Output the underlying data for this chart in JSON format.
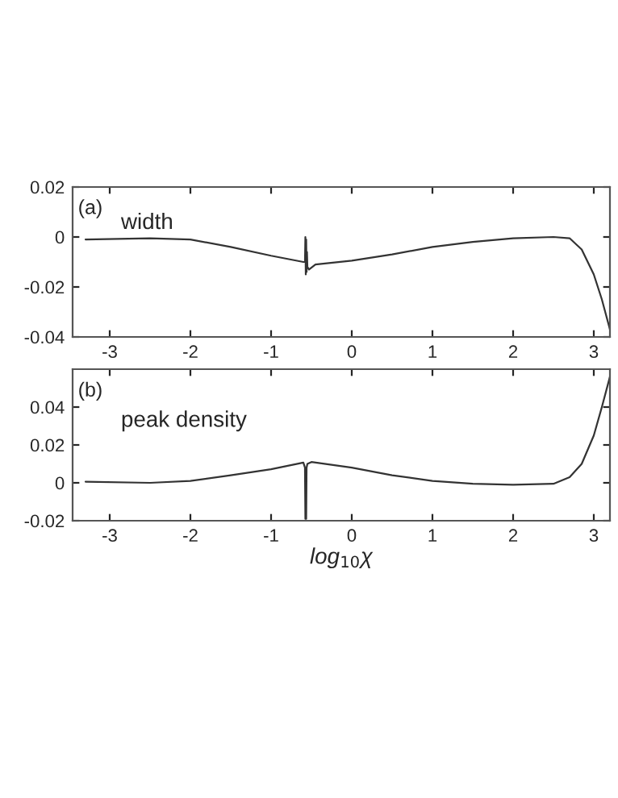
{
  "chart_data": [
    {
      "type": "line",
      "annotations": [
        "(a)",
        "width"
      ],
      "color": "#333333",
      "xlim": [
        -3.46,
        3.2
      ],
      "ylim": [
        -0.04,
        0.02
      ],
      "xticks": [
        -3,
        -2,
        -1,
        0,
        1,
        2,
        3
      ],
      "yticks": [
        {
          "value": -0.04,
          "label": "-0.04"
        },
        {
          "value": -0.02,
          "label": "-0.02"
        },
        0,
        {
          "value": 0.02,
          "label": "0.02"
        }
      ],
      "grid": false,
      "legend": false,
      "x": [
        -3.3,
        -2.5,
        -2,
        -1.5,
        -1,
        -0.6,
        -0.58,
        -0.575,
        -0.57,
        -0.565,
        -0.56,
        -0.555,
        -0.55,
        -0.53,
        -0.45,
        0,
        0.5,
        1,
        1.5,
        2,
        2.5,
        2.7,
        2.85,
        3.0,
        3.1,
        3.2
      ],
      "values": [
        -0.001,
        -0.0005,
        -0.001,
        -0.004,
        -0.0075,
        -0.01,
        -0.01,
        0.0,
        -0.015,
        -0.001,
        -0.014,
        -0.006,
        -0.012,
        -0.013,
        -0.011,
        -0.0095,
        -0.007,
        -0.004,
        -0.002,
        -0.0005,
        0.0,
        -0.0005,
        -0.005,
        -0.015,
        -0.025,
        -0.037
      ]
    },
    {
      "type": "line",
      "annotations": [
        "(b)",
        "peak density"
      ],
      "color": "#333333",
      "xlabel": "log$_{10}$χ",
      "xlim": [
        -3.46,
        3.2
      ],
      "ylim": [
        -0.02,
        0.06
      ],
      "xticks": [
        -3,
        -2,
        -1,
        0,
        1,
        2,
        3
      ],
      "yticks": [
        {
          "value": -0.02,
          "label": "-0.02"
        },
        0,
        {
          "value": 0.02,
          "label": "0.02"
        },
        {
          "value": 0.04,
          "label": "0.04"
        }
      ],
      "grid": false,
      "legend": false,
      "x": [
        -3.3,
        -2.5,
        -2,
        -1.5,
        -1,
        -0.6,
        -0.58,
        -0.575,
        -0.57,
        -0.565,
        -0.56,
        -0.55,
        -0.5,
        0,
        0.5,
        1,
        1.5,
        2,
        2.5,
        2.7,
        2.85,
        3.0,
        3.1,
        3.2
      ],
      "values": [
        0.0006,
        0.0,
        0.001,
        0.004,
        0.0072,
        0.0107,
        0.008,
        -0.019,
        0.005,
        -0.019,
        0.008,
        0.01,
        0.011,
        0.008,
        0.004,
        0.001,
        -0.0005,
        -0.001,
        -0.0005,
        0.003,
        0.01,
        0.025,
        0.04,
        0.056
      ]
    }
  ]
}
